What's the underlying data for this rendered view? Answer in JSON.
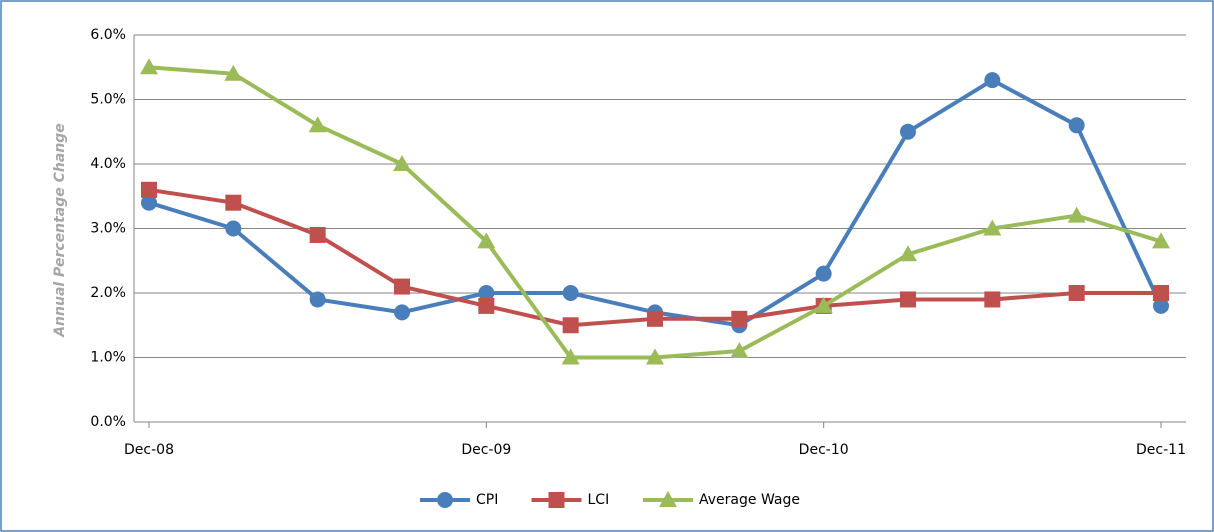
{
  "chart_data": {
    "type": "line",
    "y_label": "Annual Percentage Change",
    "categories": [
      "Dec-08",
      null,
      null,
      null,
      "Dec-09",
      null,
      null,
      null,
      "Dec-10",
      null,
      null,
      null,
      "Dec-11"
    ],
    "series": [
      {
        "name": "CPI",
        "color": "#4a7ebb",
        "marker": "circle",
        "values": [
          3.4,
          3.0,
          1.9,
          1.7,
          2.0,
          2.0,
          1.7,
          1.5,
          2.3,
          4.5,
          5.3,
          4.6,
          1.8
        ]
      },
      {
        "name": "LCI",
        "color": "#c0504d",
        "marker": "square",
        "values": [
          3.6,
          3.4,
          2.9,
          2.1,
          1.8,
          1.5,
          1.6,
          1.6,
          1.8,
          1.9,
          1.9,
          2.0,
          2.0
        ]
      },
      {
        "name": "Average Wage",
        "color": "#9bbb59",
        "marker": "triangle",
        "values": [
          5.5,
          5.4,
          4.6,
          4.0,
          2.8,
          1.0,
          1.0,
          1.1,
          1.8,
          2.6,
          3.0,
          3.2,
          2.8
        ]
      }
    ],
    "ylim": [
      0,
      6
    ],
    "yticks": [
      {
        "value": 0,
        "label": "0.0%"
      },
      {
        "value": 1,
        "label": "1.0%"
      },
      {
        "value": 2,
        "label": "2.0%"
      },
      {
        "value": 3,
        "label": "3.0%"
      },
      {
        "value": 4,
        "label": "4.0%"
      },
      {
        "value": 5,
        "label": "5.0%"
      },
      {
        "value": 6,
        "label": "6.0%"
      }
    ],
    "grid": true,
    "legend": "bottom"
  }
}
